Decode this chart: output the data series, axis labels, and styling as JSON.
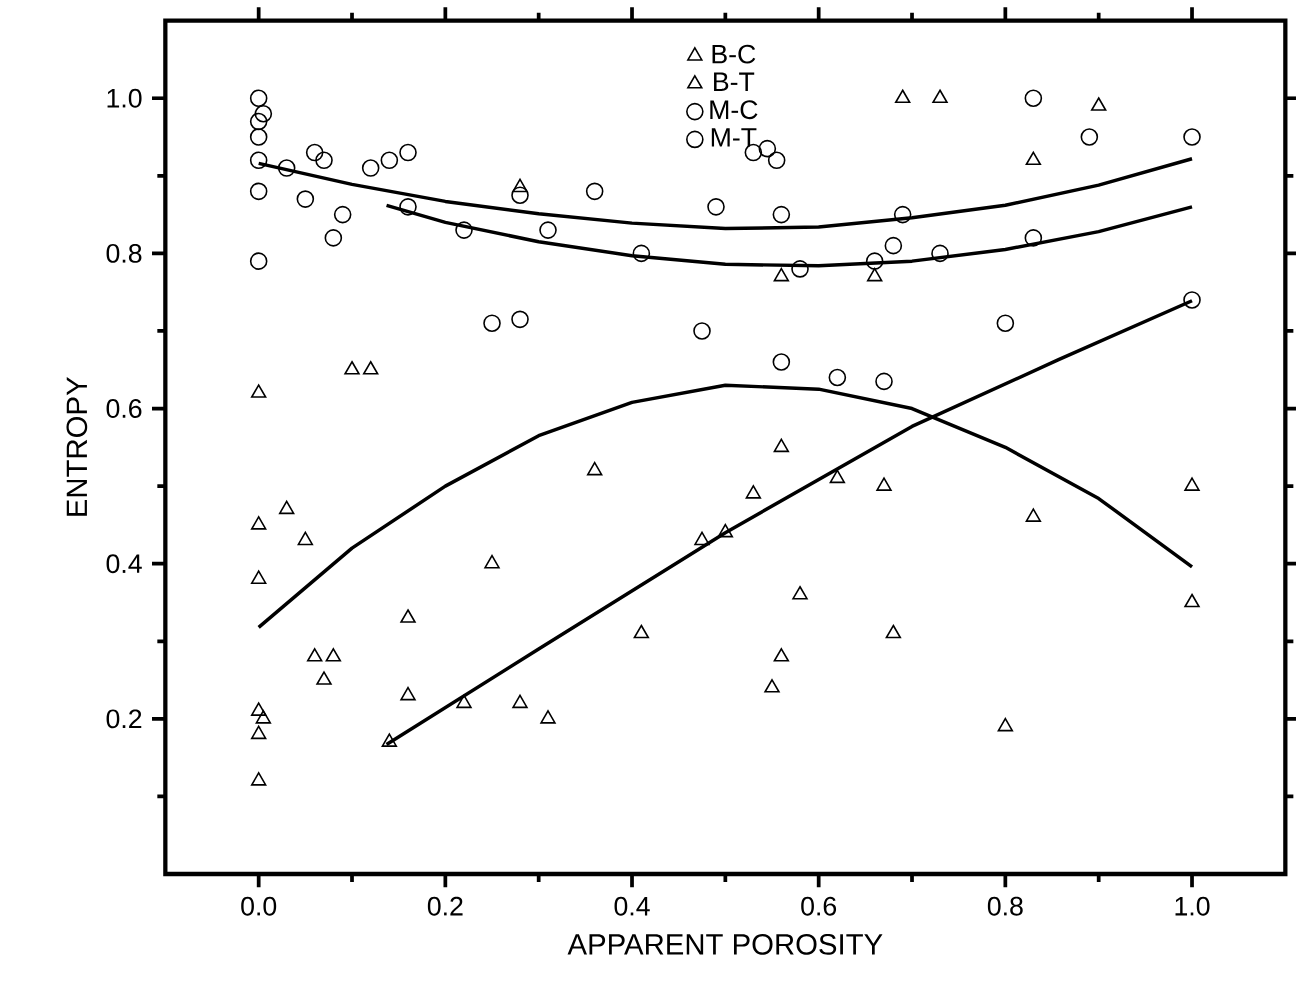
{
  "chart_data": {
    "type": "scatter",
    "xlabel": "APPARENT POROSITY",
    "ylabel": "ENTROPY",
    "xlim": [
      -0.1,
      1.1
    ],
    "ylim": [
      0,
      1.1
    ],
    "xticks": [
      {
        "value": 0,
        "label": "0.0"
      },
      {
        "value": 0.1,
        "label": null
      },
      {
        "value": 0.2,
        "label": "0.2"
      },
      {
        "value": 0.3,
        "label": null
      },
      {
        "value": 0.4,
        "label": "0.4"
      },
      {
        "value": 0.5,
        "label": null
      },
      {
        "value": 0.6,
        "label": "0.6"
      },
      {
        "value": 0.7,
        "label": null
      },
      {
        "value": 0.8,
        "label": "0.8"
      },
      {
        "value": 0.9,
        "label": null
      },
      {
        "value": 1,
        "label": "1.0"
      }
    ],
    "yticks": [
      {
        "value": 0.1,
        "label": null
      },
      {
        "value": 0.2,
        "label": "0.2"
      },
      {
        "value": 0.3,
        "label": null
      },
      {
        "value": 0.4,
        "label": "0.4"
      },
      {
        "value": 0.5,
        "label": null
      },
      {
        "value": 0.6,
        "label": "0.6"
      },
      {
        "value": 0.7,
        "label": null
      },
      {
        "value": 0.8,
        "label": "0.8"
      },
      {
        "value": 0.9,
        "label": null
      },
      {
        "value": 1,
        "label": "1.0"
      }
    ],
    "legend": "top",
    "series": [
      {
        "name": "B-C",
        "color": "#000000",
        "marker": "triangle",
        "x": [
          0,
          0,
          0,
          0,
          0.005,
          0,
          0,
          0.03,
          0.05,
          0.06,
          0.08,
          0.07,
          0.16,
          0.41,
          0.5,
          0.1,
          0.12,
          0.36,
          0.28,
          0.69,
          0.83,
          1.0
        ],
        "values": [
          0.62,
          0.45,
          0.38,
          0.21,
          0.2,
          0.18,
          0.12,
          0.47,
          0.43,
          0.28,
          0.28,
          0.25,
          0.33,
          0.31,
          0.44,
          0.65,
          0.65,
          0.52,
          0.885,
          1.0,
          0.46,
          0.35
        ]
      },
      {
        "name": "B-T",
        "color": "#000000",
        "marker": "triangle",
        "x": [
          0.73,
          0.9,
          0.83,
          0.56,
          0.66,
          0.56,
          0.62,
          0.67,
          0.53,
          1.0,
          0.25,
          0.16,
          0.22,
          0.28,
          0.31,
          0.14,
          0.475,
          0.58,
          0.68,
          0.56,
          0.55,
          0.8
        ],
        "values": [
          1.0,
          0.99,
          0.92,
          0.77,
          0.77,
          0.55,
          0.51,
          0.5,
          0.49,
          0.5,
          0.4,
          0.23,
          0.22,
          0.22,
          0.2,
          0.17,
          0.43,
          0.36,
          0.31,
          0.28,
          0.24,
          0.19
        ]
      },
      {
        "name": "M-C",
        "color": "#000000",
        "marker": "circle",
        "x": [
          0,
          0.005,
          0,
          0,
          0,
          0,
          0,
          0.03,
          0.05,
          0.06,
          0.07,
          0.08,
          0.09,
          0.12,
          0.16,
          0.28,
          0.36,
          0.49,
          0.41,
          0.69,
          0.83,
          1.0
        ],
        "values": [
          1.0,
          0.98,
          0.97,
          0.95,
          0.92,
          0.88,
          0.79,
          0.91,
          0.87,
          0.93,
          0.92,
          0.82,
          0.85,
          0.91,
          0.86,
          0.875,
          0.88,
          0.86,
          0.8,
          0.85,
          0.82,
          0.95
        ]
      },
      {
        "name": "M-T",
        "color": "#000000",
        "marker": "circle",
        "x": [
          0.14,
          0.16,
          0.22,
          0.31,
          0.25,
          0.28,
          0.475,
          0.53,
          0.545,
          0.555,
          0.56,
          0.58,
          0.66,
          0.68,
          0.73,
          0.83,
          0.89,
          1.0,
          0.8,
          0.56,
          0.62,
          0.67
        ],
        "values": [
          0.92,
          0.93,
          0.83,
          0.83,
          0.71,
          0.715,
          0.7,
          0.93,
          0.935,
          0.92,
          0.85,
          0.78,
          0.79,
          0.81,
          0.8,
          1.0,
          0.95,
          0.74,
          0.71,
          0.66,
          0.64,
          0.635
        ]
      },
      {
        "type": "line",
        "color": "#000000",
        "line_style": "solid",
        "x": [
          0,
          0.1,
          0.2,
          0.3,
          0.4,
          0.5,
          0.6,
          0.7,
          0.8,
          0.9,
          1.0
        ],
        "values": [
          0.916,
          0.889,
          0.867,
          0.851,
          0.839,
          0.832,
          0.834,
          0.846,
          0.862,
          0.888,
          0.922
        ]
      },
      {
        "type": "line",
        "color": "#000000",
        "line_style": "solid",
        "x": [
          0.137,
          0.2,
          0.3,
          0.4,
          0.5,
          0.6,
          0.7,
          0.8,
          0.9,
          1.0
        ],
        "values": [
          0.862,
          0.84,
          0.815,
          0.797,
          0.786,
          0.784,
          0.79,
          0.805,
          0.828,
          0.86
        ]
      },
      {
        "type": "line",
        "color": "#000000",
        "line_style": "solid",
        "x": [
          0,
          0.1,
          0.2,
          0.3,
          0.4,
          0.5,
          0.6,
          0.7,
          0.8,
          0.9,
          1.0
        ],
        "values": [
          0.318,
          0.42,
          0.5,
          0.565,
          0.608,
          0.63,
          0.625,
          0.6,
          0.55,
          0.484,
          0.396
        ]
      },
      {
        "type": "line",
        "color": "#000000",
        "line_style": "solid",
        "x": [
          0.137,
          0.3,
          0.5,
          0.7,
          0.857,
          1.0
        ],
        "values": [
          0.167,
          0.29,
          0.44,
          0.577,
          0.663,
          0.739
        ]
      }
    ]
  }
}
